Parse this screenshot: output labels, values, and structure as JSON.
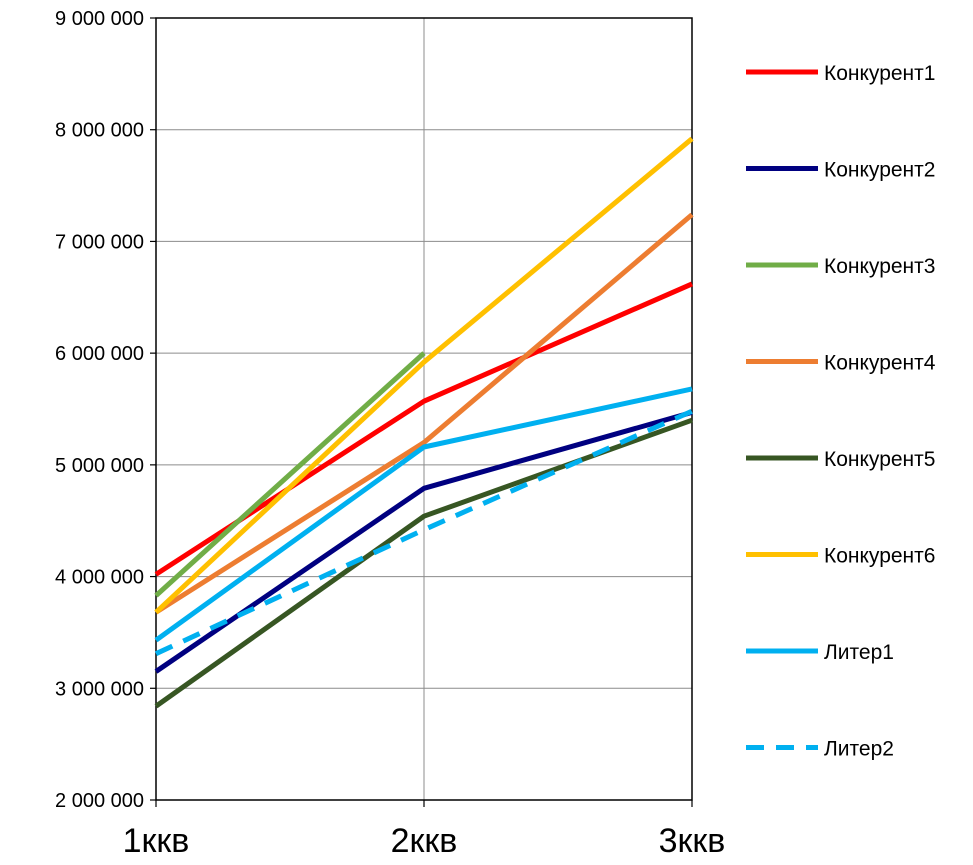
{
  "chart_data": {
    "type": "line",
    "title": "",
    "xlabel": "",
    "ylabel": "",
    "categories": [
      "1ккв",
      "2ккв",
      "3ккв"
    ],
    "ylim": [
      2000000,
      9000000
    ],
    "yticks": [
      {
        "value": 2000000,
        "label": "2 000 000"
      },
      {
        "value": 3000000,
        "label": "3 000 000"
      },
      {
        "value": 4000000,
        "label": "4 000 000"
      },
      {
        "value": 5000000,
        "label": "5 000 000"
      },
      {
        "value": 6000000,
        "label": "6 000 000"
      },
      {
        "value": 7000000,
        "label": "7 000 000"
      },
      {
        "value": 8000000,
        "label": "8 000 000"
      },
      {
        "value": 9000000,
        "label": "9 000 000"
      }
    ],
    "grid": {
      "horizontal": true,
      "vertical": true
    },
    "legend": "right",
    "series": [
      {
        "name": "Конкурент1",
        "color": "#ff0000",
        "dashed": false,
        "values": [
          4020000,
          5570000,
          6620000
        ]
      },
      {
        "name": "Конкурент2",
        "color": "#000080",
        "dashed": false,
        "values": [
          3150000,
          4790000,
          5470000
        ]
      },
      {
        "name": "Конкурент3",
        "color": "#70ad47",
        "dashed": false,
        "values": [
          3830000,
          6000000,
          null
        ]
      },
      {
        "name": "Конкурент4",
        "color": "#ed7d31",
        "dashed": false,
        "values": [
          3680000,
          5200000,
          7240000
        ]
      },
      {
        "name": "Конкурент5",
        "color": "#375623",
        "dashed": false,
        "values": [
          2840000,
          4540000,
          5400000
        ]
      },
      {
        "name": "Конкурент6",
        "color": "#ffc000",
        "dashed": false,
        "values": [
          3680000,
          5920000,
          7920000
        ]
      },
      {
        "name": "Литер1",
        "color": "#00b0f0",
        "dashed": false,
        "values": [
          3430000,
          5160000,
          5680000
        ]
      },
      {
        "name": "Литер2",
        "color": "#00b0f0",
        "dashed": true,
        "values": [
          3310000,
          4420000,
          5480000
        ]
      }
    ]
  }
}
